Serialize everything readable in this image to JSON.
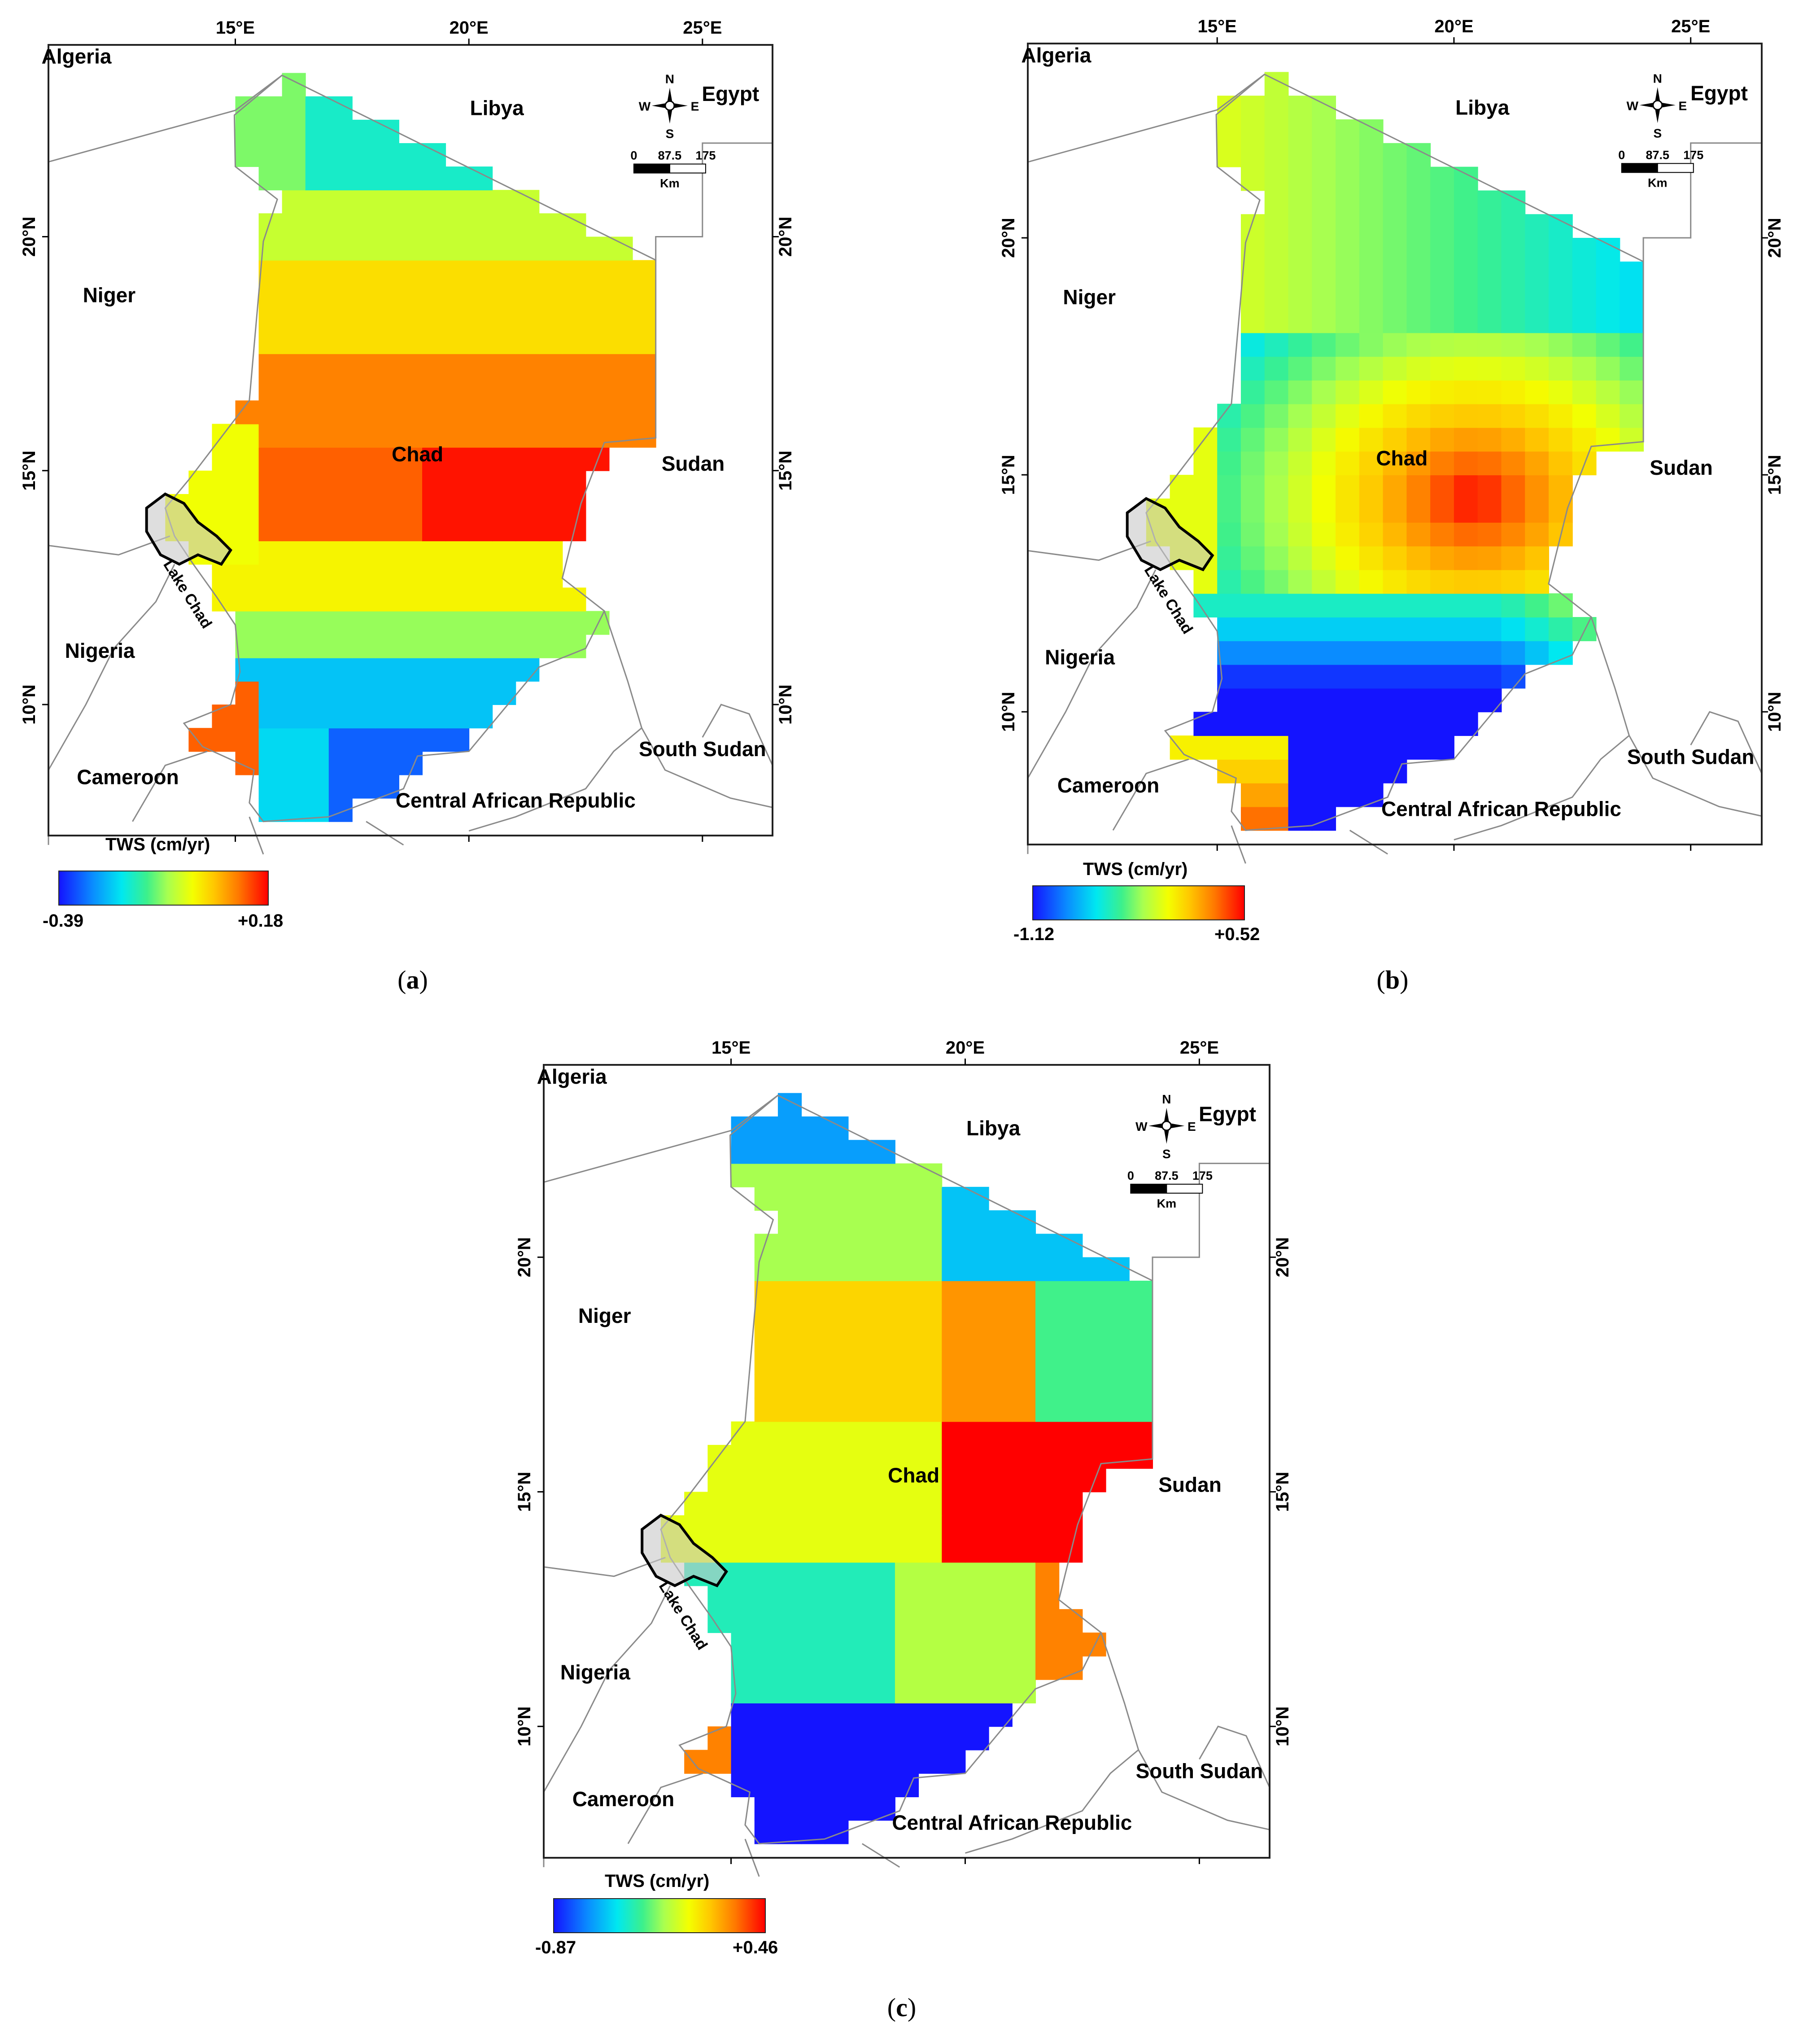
{
  "panels": [
    {
      "id": "a",
      "caption": "a",
      "legend_title": "TWS (cm/yr)",
      "legend_min": "-0.39",
      "legend_max": "+0.18",
      "countries": [
        "Algeria",
        "Egypt",
        "Libya",
        "Niger",
        "Chad",
        "Sudan",
        "Nigeria",
        "Cameroon",
        "South Sudan",
        "Central African Republic"
      ],
      "lake_label": "Lake Chad",
      "lon_ticks": [
        "15°E",
        "20°E",
        "25°E"
      ],
      "lat_ticks": [
        "20°N",
        "15°N",
        "10°N"
      ],
      "compass": {
        "n": "N",
        "s": "S",
        "e": "E",
        "w": "W"
      },
      "scale": {
        "zero": "0",
        "mid": "87.5",
        "end": "175",
        "unit": "Km"
      }
    },
    {
      "id": "b",
      "caption": "b",
      "legend_title": "TWS (cm/yr)",
      "legend_min": "-1.12",
      "legend_max": "+0.52",
      "countries": [
        "Algeria",
        "Egypt",
        "Libya",
        "Niger",
        "Chad",
        "Sudan",
        "Nigeria",
        "Cameroon",
        "South Sudan",
        "Central African Republic"
      ],
      "lake_label": "Lake Chad",
      "lon_ticks": [
        "15°E",
        "20°E",
        "25°E"
      ],
      "lat_ticks": [
        "20°N",
        "15°N",
        "10°N"
      ],
      "compass": {
        "n": "N",
        "s": "S",
        "e": "E",
        "w": "W"
      },
      "scale": {
        "zero": "0",
        "mid": "87.5",
        "end": "175",
        "unit": "Km"
      }
    },
    {
      "id": "c",
      "caption": "c",
      "legend_title": "TWS (cm/yr)",
      "legend_min": "-0.87",
      "legend_max": "+0.46",
      "countries": [
        "Algeria",
        "Egypt",
        "Libya",
        "Niger",
        "Chad",
        "Sudan",
        "Nigeria",
        "Cameroon",
        "South Sudan",
        "Central African Republic"
      ],
      "lake_label": "Lake Chad",
      "lon_ticks": [
        "15°E",
        "20°E",
        "25°E"
      ],
      "lat_ticks": [
        "20°N",
        "15°N",
        "10°N"
      ],
      "compass": {
        "n": "N",
        "s": "S",
        "e": "E",
        "w": "W"
      },
      "scale": {
        "zero": "0",
        "mid": "87.5",
        "end": "175",
        "unit": "Km"
      }
    }
  ],
  "colors": {
    "ramp": [
      "#1414ff",
      "#0a8cff",
      "#00e8f0",
      "#3cf08c",
      "#a8ff50",
      "#f4ff00",
      "#ffc800",
      "#ff7800",
      "#ff0000"
    ],
    "frame": "#222222",
    "border": "#8a8a8a"
  }
}
